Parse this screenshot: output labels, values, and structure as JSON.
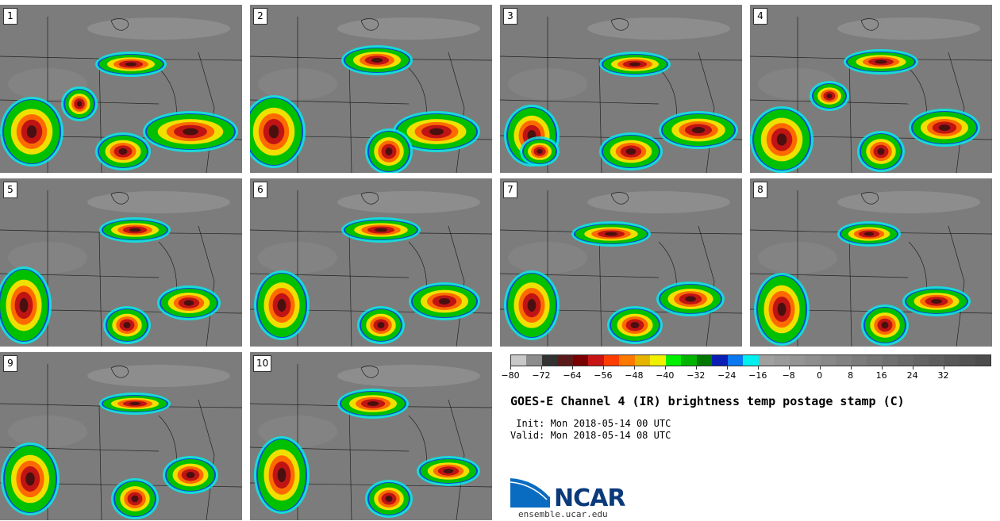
{
  "panels": [
    "1",
    "2",
    "3",
    "4",
    "5",
    "6",
    "7",
    "8",
    "9",
    "10"
  ],
  "colorbar": {
    "colors": [
      "#c8c8c8",
      "#8c8c8c",
      "#323232",
      "#5a1a1a",
      "#7a0000",
      "#c81414",
      "#ff3c00",
      "#ff7800",
      "#e6b400",
      "#f0f000",
      "#00f000",
      "#00b400",
      "#007800",
      "#0a1eb4",
      "#0a78f0",
      "#00f0f0",
      "#a0a0a0",
      "#9a9a9a",
      "#949494",
      "#8e8e8e",
      "#888888",
      "#828282",
      "#7c7c7c",
      "#767676",
      "#707070",
      "#6a6a6a",
      "#646464",
      "#5e5e5e",
      "#585858",
      "#525252",
      "#4c4c4c"
    ],
    "ticks": [
      "−80",
      "−72",
      "−64",
      "−56",
      "−48",
      "−40",
      "−32",
      "−24",
      "−16",
      "−8",
      "0",
      "8",
      "16",
      "24",
      "32"
    ]
  },
  "title": "GOES-E Channel 4 (IR) brightness temp postage stamp (C)",
  "init_line": " Init: Mon 2018-05-14 00 UTC",
  "valid_line": "Valid: Mon 2018-05-14 08 UTC",
  "logo_text": "NCAR",
  "site": "ensemble.ucar.edu"
}
